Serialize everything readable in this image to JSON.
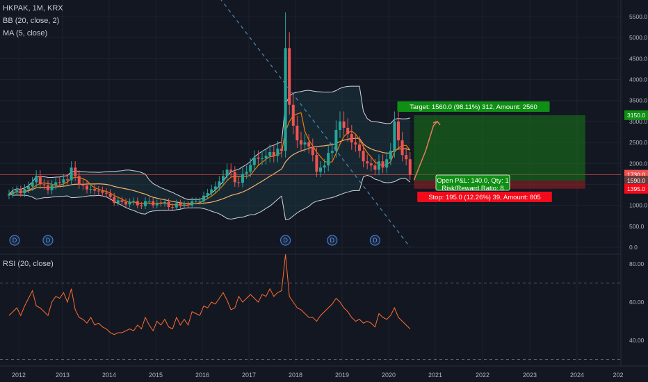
{
  "header": {
    "symbol_line": "HKPAK, 1M, KRX",
    "bb_line": "BB (20, close, 2)",
    "ma_line": "MA (5, close)",
    "rsi_line": "RSI (20, close)"
  },
  "colors": {
    "background": "#131722",
    "grid": "#1e2230",
    "up": "#26a69a",
    "down": "#ef5350",
    "bb_band": "#d1d4dc",
    "bb_fill": "#1d3b46",
    "ma": "#f6b26b",
    "ma2": "#f57c00",
    "rsi": "#ff6d2e",
    "target_zone": "#1a7a1a",
    "stop_zone": "#8b1e25",
    "target_label": "#0f8f14",
    "stop_label": "#f30b1b"
  },
  "chart_data": {
    "type": "candlestick",
    "symbol": "HKPAK",
    "interval": "1M",
    "exchange": "KRX",
    "x_ticks": [
      "2012",
      "2013",
      "2014",
      "2015",
      "2016",
      "2017",
      "2018",
      "2019",
      "2020",
      "2021",
      "2022",
      "2023",
      "2024",
      "202"
    ],
    "y_ticks": [
      "5500.0",
      "5000.0",
      "4500.0",
      "4000.0",
      "3500.0",
      "3000.0",
      "2500.0",
      "2000.0",
      "1500.0",
      "1000.0",
      "500.0",
      "0.0"
    ],
    "ylim": [
      0,
      5800
    ],
    "price_tags": [
      {
        "label": "3150.0",
        "value": 3150,
        "kind": "target"
      },
      {
        "label": "1730.0",
        "value": 1730,
        "kind": "last"
      },
      {
        "label": "1590.0",
        "value": 1590,
        "kind": "entry"
      },
      {
        "label": "1395.0",
        "value": 1395,
        "kind": "stop"
      }
    ],
    "monthly_close": [
      1270,
      1330,
      1360,
      1290,
      1390,
      1450,
      1550,
      1700,
      1500,
      1480,
      1360,
      1480,
      1550,
      1540,
      1620,
      1600,
      1900,
      1700,
      1500,
      1470,
      1380,
      1390,
      1350,
      1340,
      1300,
      1280,
      1200,
      1060,
      1120,
      1080,
      1020,
      1080,
      1100,
      1000,
      980,
      1100,
      1100,
      1000,
      1050,
      1040,
      1080,
      960,
      950,
      1050,
      990,
      1020,
      1000,
      1100,
      1100,
      1100,
      1230,
      1290,
      1380,
      1450,
      1570,
      1700,
      1850,
      1790,
      1550,
      1540,
      1750,
      1800,
      1960,
      2140,
      2110,
      2120,
      2180,
      2270,
      2180,
      2350,
      2300,
      4750,
      3400,
      2900,
      2550,
      2450,
      2500,
      2400,
      2200,
      1800,
      1900,
      1950,
      2250,
      2300,
      2800,
      3000,
      2850,
      2700,
      2500,
      2450,
      2300,
      2050,
      2000,
      1950,
      1850,
      2050,
      1900,
      2100,
      2300,
      3000,
      2550,
      2200,
      2100,
      1730
    ],
    "bollinger": {
      "period": 20,
      "stddev": 2
    },
    "moving_average": {
      "period": 5
    },
    "dividend_markers": [
      "D",
      "D",
      "D",
      "D",
      "D"
    ],
    "dividend_month_index": [
      0,
      10,
      71,
      83,
      94
    ],
    "trendline": {
      "from_month": 52,
      "from_value": 6200,
      "to_month": 103,
      "to_value": 0
    },
    "rsi": {
      "period": 20,
      "y_ticks": [
        "80.00",
        "60.00",
        "40.00"
      ],
      "upper": 70,
      "lower": 30,
      "values": [
        53,
        55,
        57,
        53,
        58,
        62,
        66,
        58,
        57,
        55,
        53,
        60,
        63,
        62,
        65,
        60,
        67,
        56,
        52,
        51,
        49,
        52,
        48,
        49,
        47,
        46,
        44,
        43,
        44,
        44,
        45,
        46,
        45,
        48,
        46,
        52,
        48,
        45,
        50,
        48,
        51,
        47,
        46,
        52,
        48,
        51,
        48,
        55,
        54,
        53,
        58,
        57,
        60,
        59,
        62,
        65,
        61,
        56,
        57,
        63,
        60,
        62,
        64,
        62,
        60,
        64,
        63,
        67,
        63,
        65,
        66,
        85,
        63,
        60,
        57,
        56,
        54,
        52,
        52,
        50,
        53,
        55,
        57,
        59,
        62,
        60,
        57,
        55,
        52,
        50,
        51,
        49,
        50,
        49,
        47,
        54,
        52,
        51,
        53,
        57,
        52,
        50,
        48,
        46
      ]
    },
    "position": {
      "type": "long",
      "entry": 1590,
      "target": 3150,
      "stop": 1395,
      "target_label": "Target: 1560.0 (98.11%) 312, Amount: 2560",
      "stop_label": "Stop: 195.0 (12.26%) 39, Amount: 805",
      "open_pl_label": "Open P&L: 140.0, Qty: 1",
      "rr_label": "Risk/Reward Ratio: 8",
      "start_month": 104,
      "end_month": 148
    },
    "projection_path": [
      [
        104,
        1600
      ],
      [
        107,
        2300
      ],
      [
        109,
        2900
      ],
      [
        110,
        3000
      ]
    ]
  }
}
